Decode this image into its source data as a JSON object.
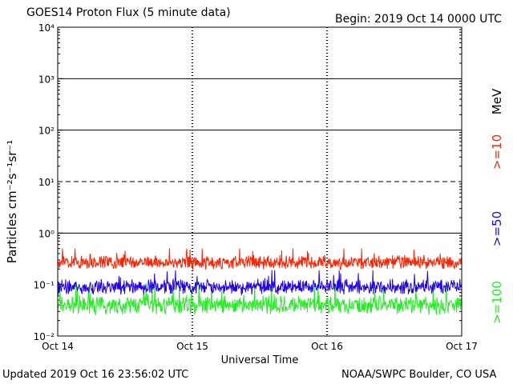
{
  "header": {
    "title": "GOES14 Proton Flux (5 minute data)",
    "begin": "Begin: 2019 Oct 14 0000 UTC"
  },
  "footer": {
    "updated": "Updated 2019 Oct 16 23:56:02 UTC",
    "source": "NOAA/SWPC Boulder, CO USA"
  },
  "chart_data": {
    "type": "line",
    "title": "GOES14 Proton Flux (5 minute data)",
    "xlabel": "Universal Time",
    "ylabel": "Particles cm⁻²s⁻¹sr⁻¹",
    "yscale": "log",
    "ylim": [
      0.01,
      10000
    ],
    "ytick_values": [
      0.01,
      0.1,
      1,
      10,
      100,
      1000,
      10000
    ],
    "ytick_labels": [
      "10⁻²",
      "10⁻¹",
      "10⁰",
      "10¹",
      "10²",
      "10³",
      "10⁴"
    ],
    "x_start": "2019-10-14 00:00 UTC",
    "x_end": "2019-10-17 00:00 UTC",
    "xtick_labels": [
      "Oct 14",
      "Oct 15",
      "Oct 16",
      "Oct 17"
    ],
    "reference_levels": [
      {
        "value": 10,
        "style": "dashed"
      },
      {
        "value": 1,
        "style": "solid"
      },
      {
        "value": 100,
        "style": "solid"
      },
      {
        "value": 1000,
        "style": "solid"
      }
    ],
    "legend": {
      "unit": "MeV",
      "placement": "right",
      "entries": [
        {
          "label": ">=10",
          "color": "#ff2200"
        },
        {
          "label": ">=50",
          "color": "#2200ee"
        },
        {
          "label": ">=100",
          "color": "#22ee22"
        }
      ]
    },
    "series": [
      {
        "name": ">=10",
        "color": "#ff2200",
        "typical_value": 0.27,
        "min_value": 0.15,
        "max_value": 0.5
      },
      {
        "name": ">=50",
        "color": "#2200ee",
        "typical_value": 0.09,
        "min_value": 0.05,
        "max_value": 0.19
      },
      {
        "name": ">=100",
        "color": "#22ee22",
        "typical_value": 0.04,
        "min_value": 0.025,
        "max_value": 0.12
      }
    ],
    "grid": true
  }
}
